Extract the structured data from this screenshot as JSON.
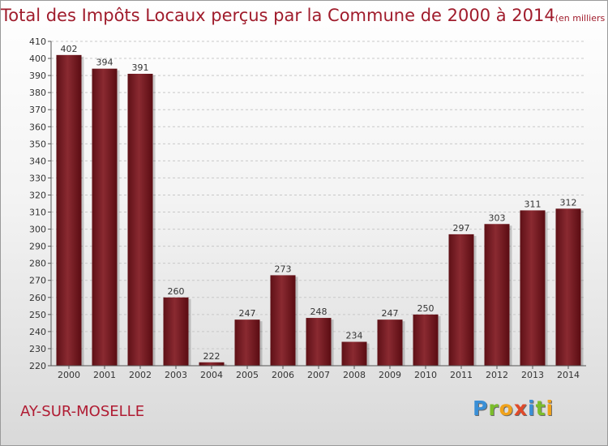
{
  "header": {
    "title": "Total des Impôts Locaux perçus par la Commune de 2000 à 2014",
    "subtitle": "(en milliers d'€)"
  },
  "commune_label": "AY-SUR-MOSELLE",
  "logo": {
    "letters": [
      "P",
      "r",
      "o",
      "x",
      "i",
      "t",
      "i"
    ],
    "colors": [
      "#3a8fd6",
      "#7bbd2b",
      "#f0a21b",
      "#e04a2a",
      "#3a8fd6",
      "#7bbd2b",
      "#f0a21b"
    ]
  },
  "chart_data": {
    "type": "bar",
    "title": "Total des Impôts Locaux perçus par la Commune de 2000 à 2014",
    "xlabel": "",
    "ylabel": "",
    "categories": [
      "2000",
      "2001",
      "2002",
      "2003",
      "2004",
      "2005",
      "2006",
      "2007",
      "2008",
      "2009",
      "2010",
      "2011",
      "2012",
      "2013",
      "2014"
    ],
    "values": [
      402,
      394,
      391,
      260,
      222,
      247,
      273,
      248,
      234,
      247,
      250,
      297,
      303,
      311,
      312
    ],
    "ylim": [
      220,
      410
    ],
    "ytick_step": 10,
    "grid": true,
    "bar_color": "#7a1a22"
  }
}
